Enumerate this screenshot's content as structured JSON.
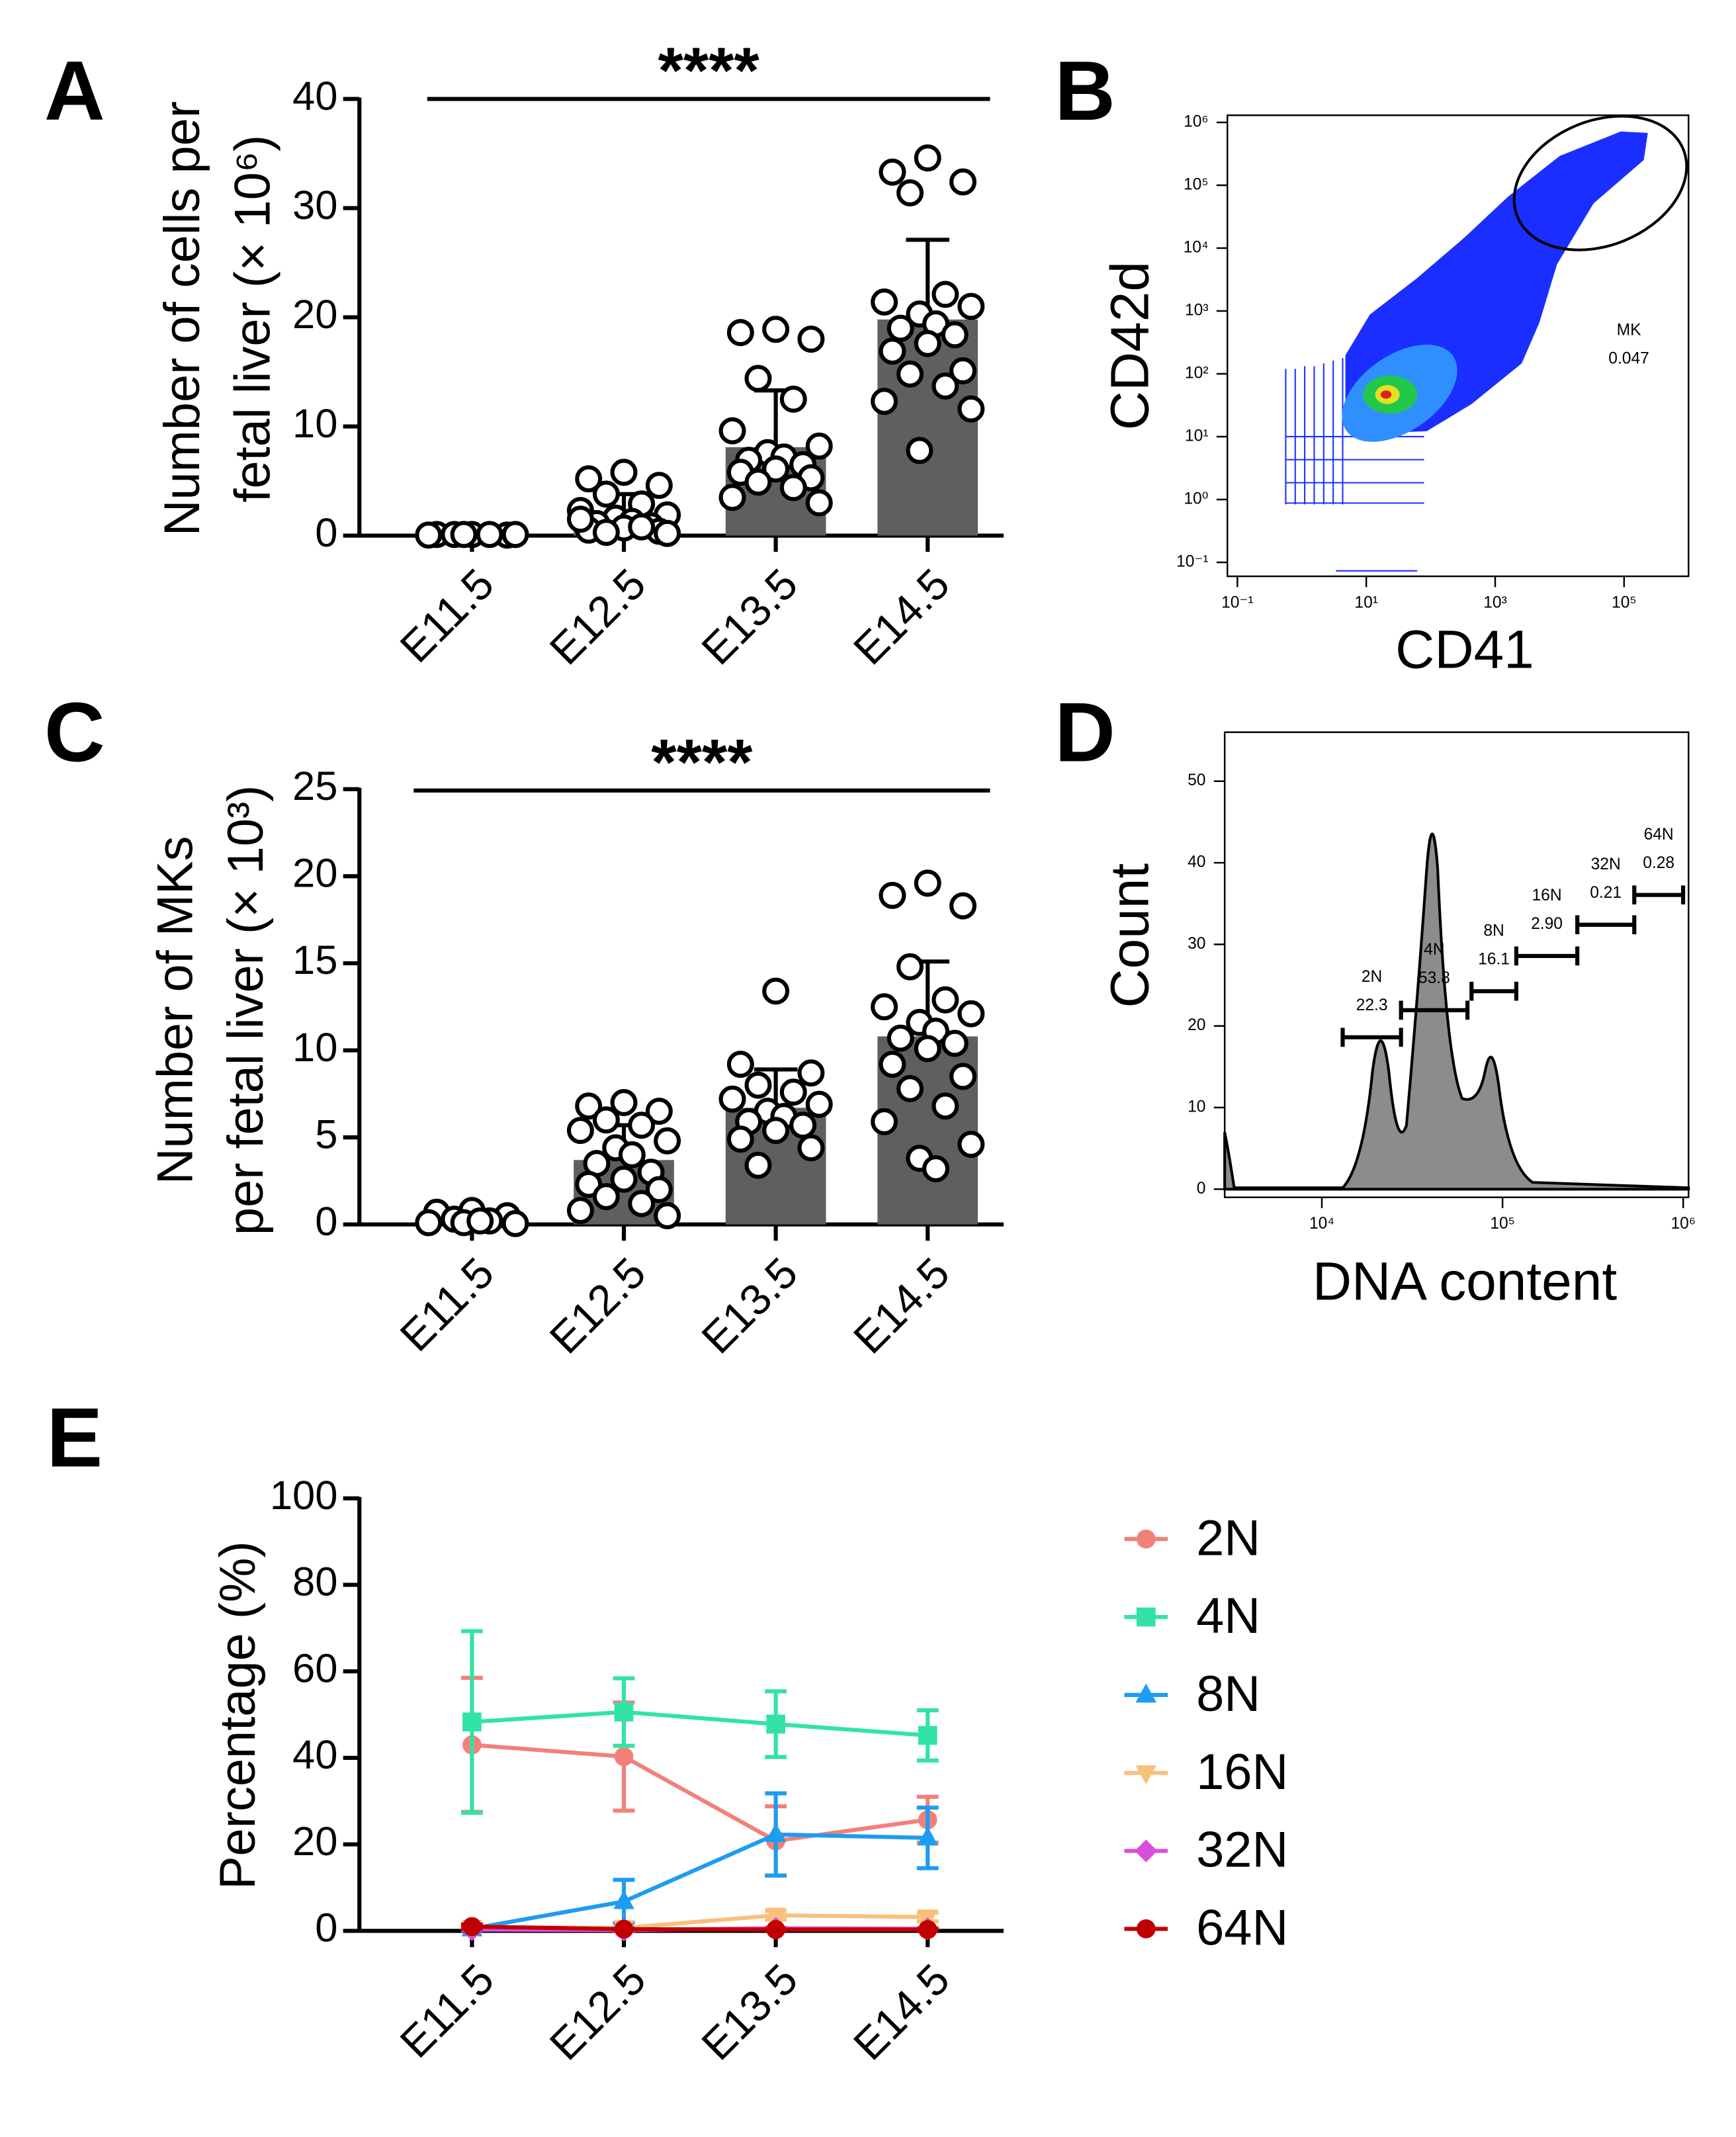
{
  "chart_data": [
    {
      "type": "bar",
      "panel": "A",
      "y_label": [
        "Number of cells per",
        "fetal liver (× 10⁶)"
      ],
      "significance": "****",
      "categories": [
        "E11.5",
        "E12.5",
        "E13.5",
        "E14.5"
      ],
      "values": [
        0.1,
        1.8,
        8.1,
        19.8
      ],
      "errors": [
        0.05,
        2.0,
        5.2,
        7.3
      ],
      "points": [
        [
          0.1,
          0.1,
          0.05,
          0.1,
          0.1,
          0.05,
          0.1,
          0.1
        ],
        [
          5.8,
          5.2,
          4.6,
          3.8,
          2.9,
          2.3,
          1.9,
          1.6,
          1.3,
          1.1,
          0.9,
          0.7,
          0.5,
          0.4,
          0.3,
          0.8,
          1.5,
          0.2
        ],
        [
          18.9,
          18.6,
          18.0,
          14.4,
          12.5,
          9.6,
          8.2,
          7.6,
          7.2,
          6.9,
          6.5,
          6.1,
          5.8,
          5.3,
          4.9,
          4.4,
          3.5,
          3.0
        ],
        [
          34.6,
          33.3,
          32.4,
          31.4,
          22.1,
          21.4,
          21.0,
          20.3,
          19.4,
          19.0,
          18.4,
          17.6,
          16.9,
          15.1,
          14.8,
          13.7,
          12.3,
          11.6,
          7.8
        ]
      ],
      "color": "#5f5f5f",
      "ylim": [
        0,
        40
      ],
      "yticks": [
        0,
        10,
        20,
        30,
        40
      ]
    },
    {
      "type": "flow_scatter",
      "panel": "B",
      "x_label": "CD41",
      "y_label": "CD42d",
      "log_x": true,
      "log_y": true,
      "xlim": [
        0.07,
        1000000
      ],
      "ylim": [
        0.06,
        1300000
      ],
      "xticks": [
        {
          "value": 0.1,
          "label": "10⁻¹"
        },
        {
          "value": 10,
          "label": "10¹"
        },
        {
          "value": 1000,
          "label": "10³"
        },
        {
          "value": 100000,
          "label": "10⁵"
        }
      ],
      "yticks": [
        {
          "value": 0.1,
          "label": "10⁻¹"
        },
        {
          "value": 1,
          "label": "10⁰"
        },
        {
          "value": 10,
          "label": "10¹"
        },
        {
          "value": 100,
          "label": "10²"
        },
        {
          "value": 1000,
          "label": "10³"
        },
        {
          "value": 10000,
          "label": "10⁴"
        },
        {
          "value": 100000,
          "label": "10⁵"
        },
        {
          "value": 1000000,
          "label": "10⁶"
        }
      ],
      "gate": {
        "name": "MK",
        "value": 0.047
      }
    },
    {
      "type": "bar",
      "panel": "C",
      "y_label": [
        "Number of MKs",
        "per fetal liver (× 10³)"
      ],
      "significance": "****",
      "categories": [
        "E11.5",
        "E12.5",
        "E13.5",
        "E14.5"
      ],
      "values": [
        0.2,
        3.7,
        6.7,
        10.8
      ],
      "errors": [
        0.1,
        2.0,
        2.2,
        4.3
      ],
      "points": [
        [
          0.8,
          0.7,
          0.5,
          0.3,
          0.2,
          0.1,
          0.05,
          0.1,
          0.2
        ],
        [
          7.0,
          6.8,
          6.5,
          6.0,
          5.7,
          5.4,
          4.8,
          4.4,
          4.0,
          3.5,
          3.0,
          2.6,
          2.3,
          2.0,
          1.6,
          1.2,
          0.8,
          0.5
        ],
        [
          13.4,
          9.2,
          8.7,
          8.0,
          7.6,
          7.2,
          6.9,
          6.5,
          6.2,
          5.9,
          5.7,
          5.4,
          4.9,
          4.4,
          3.4
        ],
        [
          19.6,
          18.9,
          18.3,
          14.8,
          12.9,
          12.5,
          12.1,
          11.6,
          11.1,
          10.7,
          10.4,
          10.1,
          9.2,
          8.5,
          7.8,
          6.8,
          5.9,
          4.6,
          3.8,
          3.2
        ]
      ],
      "color": "#5f5f5f",
      "ylim": [
        0,
        25
      ],
      "yticks": [
        0,
        5,
        10,
        15,
        20,
        25
      ]
    },
    {
      "type": "dna_histogram",
      "panel": "D",
      "x_label": "DNA content",
      "y_label": "Count",
      "log_x": true,
      "xlim": [
        2900,
        1070000
      ],
      "ylim": [
        -1,
        56
      ],
      "xticks": [
        {
          "value": 10000,
          "label": "10⁴"
        },
        {
          "value": 100000,
          "label": "10⁵"
        },
        {
          "value": 1000000,
          "label": "10⁶"
        }
      ],
      "yticks": [
        0,
        10,
        20,
        30,
        40,
        50
      ],
      "gates": {
        "names": [
          "2N",
          "4N",
          "8N",
          "16N",
          "32N",
          "64N"
        ],
        "values": [
          22.3,
          53.8,
          16.1,
          2.9,
          0.21,
          0.28
        ],
        "value_labels": [
          "22.3",
          "53.8",
          "16.1",
          "2.90",
          "0.21",
          "0.28"
        ]
      }
    },
    {
      "type": "line",
      "panel": "E",
      "y_label": "Percentage (%)",
      "categories": [
        "E11.5",
        "E12.5",
        "E13.5",
        "E14.5"
      ],
      "ylim": [
        0,
        100
      ],
      "yticks": [
        0,
        20,
        40,
        60,
        80,
        100
      ],
      "series": [
        {
          "name": "2N",
          "color": "#f2807a",
          "marker": "circle",
          "values": [
            43.0,
            40.3,
            20.8,
            25.7
          ],
          "errors": [
            15.5,
            12.5,
            8.0,
            5.3
          ]
        },
        {
          "name": "4N",
          "color": "#33e3a5",
          "marker": "square",
          "values": [
            48.3,
            50.6,
            47.8,
            45.2
          ],
          "errors": [
            21.0,
            7.8,
            7.6,
            5.8
          ]
        },
        {
          "name": "8N",
          "color": "#1e9cf0",
          "marker": "triangle-up",
          "values": [
            0.5,
            6.8,
            22.3,
            21.5
          ],
          "errors": [
            0.3,
            5.0,
            9.5,
            7.0
          ]
        },
        {
          "name": "16N",
          "color": "#f8c07c",
          "marker": "triangle-down",
          "values": [
            0.8,
            0.7,
            3.6,
            3.2
          ],
          "errors": [
            0.3,
            0.3,
            1.0,
            1.0
          ]
        },
        {
          "name": "32N",
          "color": "#d94fd9",
          "marker": "diamond",
          "values": [
            0.3,
            0.2,
            0.6,
            0.5
          ],
          "errors": [
            0.1,
            0.1,
            0.1,
            0.1
          ]
        },
        {
          "name": "64N",
          "color": "#c00000",
          "marker": "circle",
          "values": [
            1.0,
            0.4,
            0.3,
            0.3
          ],
          "errors": [
            0.5,
            0.1,
            0.1,
            0.1
          ]
        }
      ]
    }
  ]
}
